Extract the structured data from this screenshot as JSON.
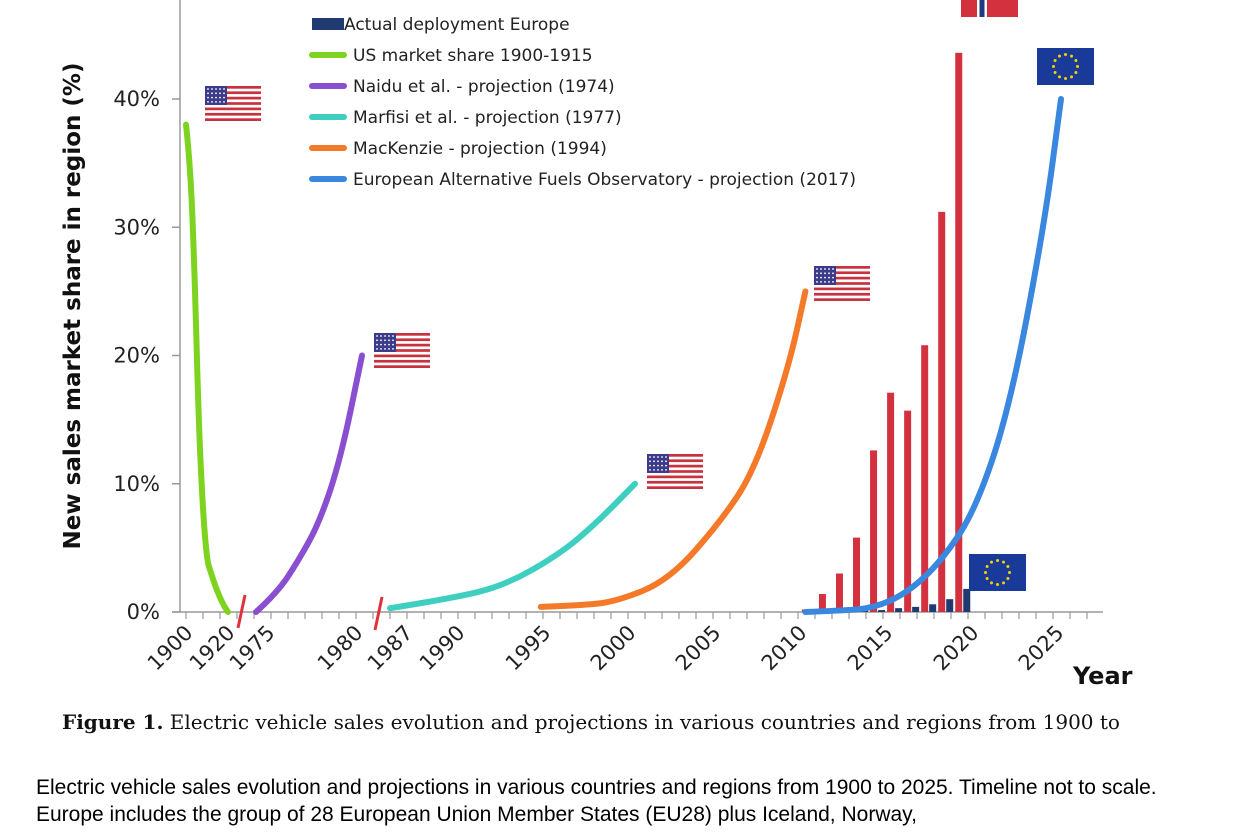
{
  "chart_data": {
    "type": "line",
    "ylabel": "New sales market share in region (%)",
    "xlabel": "Year",
    "ylim": [
      0,
      40
    ],
    "yticks": [
      "0%",
      "10%",
      "20%",
      "30%",
      "40%"
    ],
    "x_ticks": [
      "1900",
      "1920",
      "1975",
      "1980",
      "1987",
      "1990",
      "1995",
      "2000",
      "2005",
      "2010",
      "2015",
      "2020",
      "2025"
    ],
    "legend": [
      {
        "label": "Actual deployment Europe",
        "color": "#1f3a6e",
        "kind": "bar"
      },
      {
        "label": "US market share 1900-1915",
        "color": "#7ed321",
        "kind": "line"
      },
      {
        "label": "Naidu et al. - projection (1974)",
        "color": "#8a4fd1",
        "kind": "line"
      },
      {
        "label": "Marfisi et al. - projection (1977)",
        "color": "#3fcfc1",
        "kind": "line"
      },
      {
        "label": "MacKenzie - projection (1994)",
        "color": "#f47a2a",
        "kind": "line"
      },
      {
        "label": "European Alternative Fuels Observatory - projection (2017)",
        "color": "#3a87df",
        "kind": "line"
      }
    ],
    "series": [
      {
        "name": "US market share 1900-1915",
        "color": "#7ed321",
        "x": [
          1900,
          1901,
          1902,
          1903,
          1904,
          1905,
          1906,
          1907,
          1908,
          1909,
          1910
        ],
        "y": [
          38,
          35,
          27,
          15,
          8,
          4,
          3,
          2,
          1.2,
          0.5,
          0
        ]
      },
      {
        "name": "Naidu et al. - projection (1974)",
        "color": "#8a4fd1",
        "x": [
          1975,
          1976,
          1977,
          1978,
          1979,
          1980
        ],
        "y": [
          0,
          1.5,
          4,
          7,
          12,
          20
        ]
      },
      {
        "name": "Marfisi et al. - projection (1977)",
        "color": "#3fcfc1",
        "x": [
          1987,
          1990,
          1993,
          1996,
          1998,
          2000
        ],
        "y": [
          0.3,
          1,
          2,
          4.5,
          7,
          10
        ]
      },
      {
        "name": "MacKenzie - projection (1994)",
        "color": "#f47a2a",
        "x": [
          1995,
          1997,
          1999,
          2002,
          2005,
          2007,
          2009,
          2010
        ],
        "y": [
          0.4,
          0.5,
          0.8,
          2.5,
          7,
          11,
          19,
          25
        ]
      },
      {
        "name": "European Alternative Fuels Observatory - projection (2017)",
        "color": "#3a87df",
        "x": [
          2010,
          2012,
          2014,
          2016,
          2018,
          2020,
          2022,
          2024,
          2025
        ],
        "y": [
          0,
          0.1,
          0.3,
          1.5,
          4,
          8,
          16,
          30,
          40
        ]
      }
    ],
    "bars_norway": {
      "color": "#d2313d",
      "x": [
        2010,
        2011,
        2012,
        2013,
        2014,
        2015,
        2016,
        2017,
        2018,
        2019
      ],
      "y": [
        0.2,
        1.4,
        3,
        5.8,
        12.6,
        17.1,
        15.7,
        20.8,
        31.2,
        43.6
      ]
    },
    "bars_europe": {
      "name": "Actual deployment Europe",
      "color": "#1f3a6e",
      "x": [
        2013,
        2014,
        2015,
        2016,
        2017,
        2018,
        2019
      ],
      "y": [
        0.1,
        0.15,
        0.3,
        0.4,
        0.6,
        1,
        1.8
      ]
    }
  },
  "figure": {
    "label": "Figure 1.",
    "text": "Electric vehicle sales evolution and projections in various countries and regions from 1900 to"
  },
  "caption": "Electric vehicle sales evolution and projections in various countries and regions from 1900 to 2025. Timeline not to scale. Europe includes the group of 28 European Union Member States (EU28) plus Iceland, Norway,",
  "colors": {
    "us_flag_red": "#c8313e",
    "us_flag_blue": "#3c3b8a",
    "eu_blue": "#1a3a9a",
    "eu_star": "#f5d100"
  }
}
